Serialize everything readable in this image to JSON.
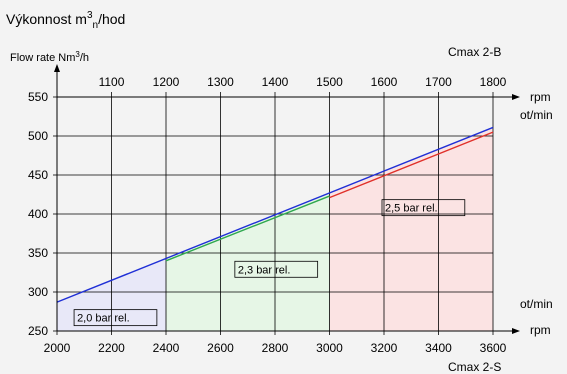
{
  "chart_data": {
    "type": "line",
    "title_cz": {
      "base": "Výkonnost m",
      "sup": "3",
      "sub": "n",
      "tail": "/hod"
    },
    "title_en": {
      "base": "Flow rate Nm",
      "sup": "3",
      "tail": "/h"
    },
    "model_top": "Cmax 2-B",
    "model_bottom": "Cmax 2-S",
    "bottom_axis": {
      "label_right": "rpm",
      "label_right_2": "ot/min",
      "ticks": [
        2000,
        2200,
        2400,
        2600,
        2800,
        3000,
        3200,
        3400,
        3600
      ],
      "range": [
        2000,
        3600
      ]
    },
    "top_axis": {
      "label_right": "rpm",
      "label_right_2": "ot/min",
      "ticks": [
        1100,
        1200,
        1300,
        1400,
        1500,
        1600,
        1700,
        1800
      ],
      "range": [
        1000,
        1800
      ]
    },
    "y_axis": {
      "ticks": [
        250,
        300,
        350,
        400,
        450,
        500,
        550
      ],
      "range": [
        250,
        560
      ]
    },
    "regions": [
      {
        "label": "2,0 bar rel.",
        "x_range": [
          2000,
          2400
        ],
        "color": "#e8e8f8"
      },
      {
        "label": "2,3 bar rel.",
        "x_range": [
          2400,
          3000
        ],
        "color": "#e6f6e6"
      },
      {
        "label": "2,5 bar rel.",
        "x_range": [
          3000,
          3600
        ],
        "color": "#fbe3e3"
      }
    ],
    "series": [
      {
        "color": "#1f2fd6",
        "x": [
          2000,
          3600
        ],
        "y": [
          287,
          511
        ]
      },
      {
        "color": "#2fa84f",
        "x": [
          2400,
          3000
        ],
        "y": [
          340,
          423
        ]
      },
      {
        "color": "#e0302a",
        "x": [
          3000,
          3600
        ],
        "y": [
          421,
          505
        ]
      }
    ]
  }
}
